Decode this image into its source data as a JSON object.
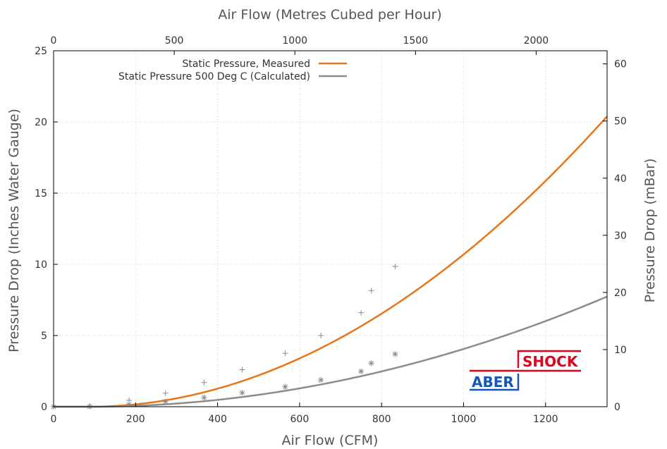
{
  "chart_data": {
    "type": "scatter",
    "title": "",
    "xlabel": "Air Flow (CFM)",
    "ylabel": "Pressure Drop (Inches Water Gauge)",
    "x2label": "Air Flow (Metres Cubed per Hour)",
    "y2label": "Pressure Drop (mBar)",
    "xlim": [
      0,
      1350
    ],
    "ylim": [
      0,
      25
    ],
    "x2lim": [
      0,
      2294
    ],
    "y2lim": [
      0,
      62.3
    ],
    "xticks": [
      0,
      200,
      400,
      600,
      800,
      1000,
      1200
    ],
    "yticks": [
      0,
      5,
      10,
      15,
      20,
      25
    ],
    "x2ticks": [
      0,
      500,
      1000,
      1500,
      2000
    ],
    "y2ticks": [
      0,
      10,
      20,
      30,
      40,
      50,
      60
    ],
    "grid": true,
    "legend_position": "top",
    "series": [
      {
        "name": "Static Pressure, Measured",
        "color": "#e87518",
        "marker": "+",
        "points": [
          {
            "x": 0,
            "y": 0
          },
          {
            "x": 88,
            "y": 0.05
          },
          {
            "x": 184,
            "y": 0.45
          },
          {
            "x": 273,
            "y": 0.95
          },
          {
            "x": 367,
            "y": 1.7
          },
          {
            "x": 460,
            "y": 2.6
          },
          {
            "x": 565,
            "y": 3.75
          },
          {
            "x": 652,
            "y": 5.0
          },
          {
            "x": 750,
            "y": 6.6
          },
          {
            "x": 775,
            "y": 8.15
          },
          {
            "x": 833,
            "y": 9.85
          }
        ],
        "fit": {
          "a": 1.395e-05,
          "b": 1.988,
          "x0": 88,
          "x_end": 1350
        }
      },
      {
        "name": "Static Pressure 500 Deg C (Calculated)",
        "color": "#8c8c8c",
        "marker": "*",
        "points": [
          {
            "x": 0,
            "y": 0
          },
          {
            "x": 88,
            "y": 0.02
          },
          {
            "x": 184,
            "y": 0.17
          },
          {
            "x": 273,
            "y": 0.36
          },
          {
            "x": 367,
            "y": 0.64
          },
          {
            "x": 460,
            "y": 0.98
          },
          {
            "x": 565,
            "y": 1.4
          },
          {
            "x": 652,
            "y": 1.88
          },
          {
            "x": 750,
            "y": 2.48
          },
          {
            "x": 775,
            "y": 3.06
          },
          {
            "x": 833,
            "y": 3.7
          }
        ],
        "fit": {
          "a": 5.29e-06,
          "b": 1.988,
          "x0": 88,
          "x_end": 1350
        }
      }
    ]
  },
  "logo": {
    "part1": "ABER",
    "part2": "SHOCK",
    "color1": "#1457b8",
    "color2": "#e3001b"
  },
  "colors": {
    "axis": "#000000",
    "grid": "#e2e2e2",
    "tick_text": "#333333",
    "title_text": "#555555"
  }
}
